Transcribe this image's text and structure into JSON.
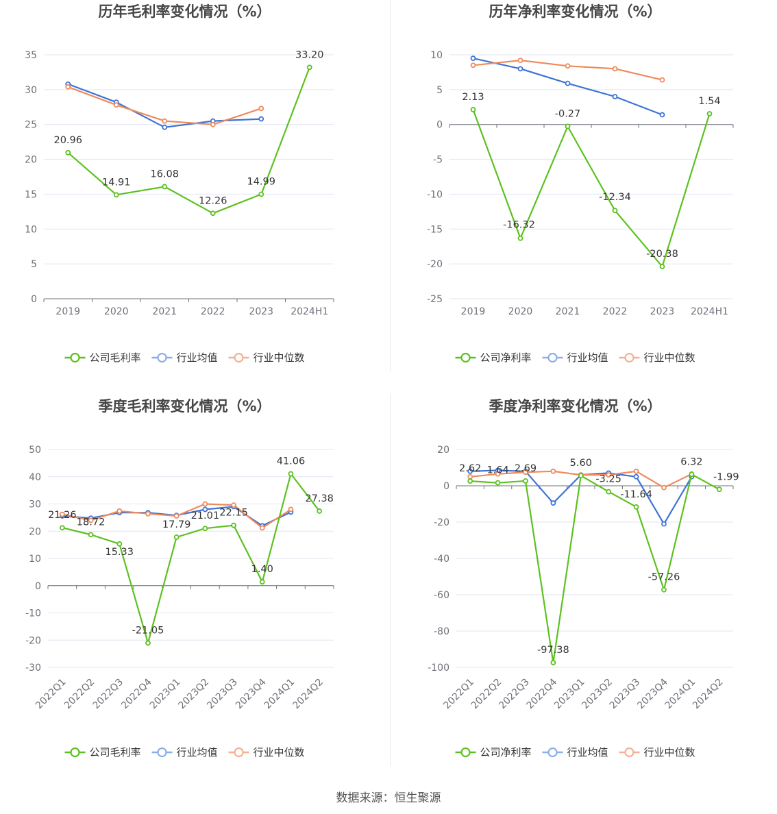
{
  "footer": {
    "source": "数据来源：恒生聚源"
  },
  "colors": {
    "company": "#5cc11f",
    "avg": "#3d73d6",
    "median": "#ef8a5a",
    "avg_legend": "#8caee8",
    "median_legend": "#f5b094"
  },
  "chart_data": [
    {
      "id": "annual-gross",
      "type": "line",
      "title": "历年毛利率变化情况（%）",
      "categories": [
        "2019",
        "2020",
        "2021",
        "2022",
        "2023",
        "2024H1"
      ],
      "ylim": [
        0,
        35
      ],
      "yticks": [
        0,
        5,
        10,
        15,
        20,
        25,
        30,
        35
      ],
      "ytick_labels": [
        "0",
        "5",
        "10",
        "15",
        "20",
        "25",
        "30",
        "35"
      ],
      "series": [
        {
          "name": "公司毛利率",
          "color_key": "company",
          "values": [
            20.96,
            14.91,
            16.08,
            12.26,
            14.99,
            33.2
          ],
          "labels": [
            "20.96",
            "14.91",
            "16.08",
            "12.26",
            "14.99",
            "33.20"
          ]
        },
        {
          "name": "行业均值",
          "color_key": "avg",
          "values": [
            30.8,
            28.2,
            24.6,
            25.5,
            25.8,
            null
          ]
        },
        {
          "name": "行业中位数",
          "color_key": "median",
          "values": [
            30.4,
            27.8,
            25.5,
            25.0,
            27.3,
            null
          ]
        }
      ]
    },
    {
      "id": "annual-net",
      "type": "line",
      "title": "历年净利率变化情况（%）",
      "categories": [
        "2019",
        "2020",
        "2021",
        "2022",
        "2023",
        "2024H1"
      ],
      "ylim": [
        -25,
        10
      ],
      "yticks": [
        -25,
        -20,
        -15,
        -10,
        -5,
        0,
        5,
        10
      ],
      "ytick_labels": [
        "-25",
        "-20",
        "-15",
        "-10",
        "-5",
        "0",
        "5",
        "10"
      ],
      "series": [
        {
          "name": "公司净利率",
          "color_key": "company",
          "values": [
            2.13,
            -16.32,
            -0.27,
            -12.34,
            -20.38,
            1.54
          ],
          "labels": [
            "2.13",
            "-16.32",
            "-0.27",
            "-12.34",
            "-20.38",
            "1.54"
          ]
        },
        {
          "name": "行业均值",
          "color_key": "avg",
          "values": [
            9.5,
            8.0,
            5.9,
            4.0,
            1.4,
            null
          ]
        },
        {
          "name": "行业中位数",
          "color_key": "median",
          "values": [
            8.5,
            9.2,
            8.4,
            8.0,
            6.4,
            null
          ]
        }
      ]
    },
    {
      "id": "quarter-gross",
      "type": "line",
      "title": "季度毛利率变化情况（%）",
      "categories": [
        "2022Q1",
        "2022Q2",
        "2022Q3",
        "2022Q4",
        "2023Q1",
        "2023Q2",
        "2023Q3",
        "2023Q4",
        "2024Q1",
        "2024Q2"
      ],
      "ylim": [
        -30,
        50
      ],
      "yticks": [
        -30,
        -20,
        -10,
        0,
        10,
        20,
        30,
        40,
        50
      ],
      "ytick_labels": [
        "-30",
        "-20",
        "-10",
        "0",
        "10",
        "20",
        "30",
        "40",
        "50"
      ],
      "series": [
        {
          "name": "公司毛利率",
          "color_key": "company",
          "values": [
            21.26,
            18.72,
            15.33,
            -21.05,
            17.79,
            21.01,
            22.15,
            1.4,
            41.06,
            27.38
          ],
          "labels": [
            "21.26",
            "18.72",
            "15.33",
            "-21.05",
            "17.79",
            "21.01",
            "22.15",
            "1.40",
            "41.06",
            "27.38"
          ]
        },
        {
          "name": "行业均值",
          "color_key": "avg",
          "values": [
            25.6,
            24.8,
            26.8,
            26.8,
            25.8,
            28.0,
            29.0,
            22.0,
            27.0,
            null
          ]
        },
        {
          "name": "行业中位数",
          "color_key": "median",
          "values": [
            26.2,
            24.0,
            27.4,
            26.4,
            25.6,
            30.0,
            29.6,
            21.2,
            28.0,
            null
          ]
        }
      ]
    },
    {
      "id": "quarter-net",
      "type": "line",
      "title": "季度净利率变化情况（%）",
      "categories": [
        "2022Q1",
        "2022Q2",
        "2022Q3",
        "2022Q4",
        "2023Q1",
        "2023Q2",
        "2023Q3",
        "2023Q4",
        "2024Q1",
        "2024Q2"
      ],
      "ylim": [
        -100,
        20
      ],
      "yticks": [
        -100,
        -80,
        -60,
        -40,
        -20,
        0,
        20
      ],
      "ytick_labels": [
        "-100",
        "-80",
        "-60",
        "-40",
        "-20",
        "0",
        "20"
      ],
      "series": [
        {
          "name": "公司净利率",
          "color_key": "company",
          "values": [
            2.62,
            1.64,
            2.69,
            -97.38,
            5.6,
            -3.25,
            -11.64,
            -57.26,
            6.32,
            -1.99
          ],
          "labels": [
            "2.62",
            "1.64",
            "2.69",
            "-97.38",
            "5.60",
            "-3.25",
            "-11.64",
            "-57.26",
            "6.32",
            "-1.99"
          ]
        },
        {
          "name": "行业均值",
          "color_key": "avg",
          "values": [
            8.0,
            8.5,
            8.0,
            -9.5,
            6.0,
            7.0,
            5.0,
            -21.0,
            5.0,
            null
          ]
        },
        {
          "name": "行业中位数",
          "color_key": "median",
          "values": [
            5.0,
            6.5,
            7.5,
            8.0,
            6.0,
            6.0,
            8.0,
            -1.0,
            6.5,
            null
          ]
        }
      ]
    }
  ]
}
